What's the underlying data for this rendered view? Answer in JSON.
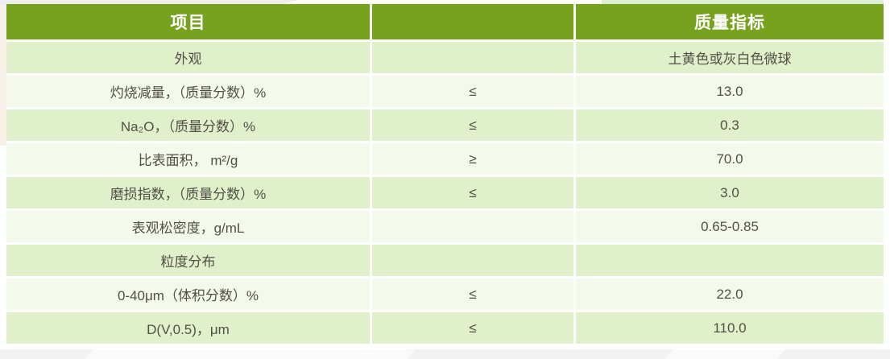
{
  "table": {
    "header": {
      "item": "项目",
      "operator": "",
      "indicator": "质量指标"
    },
    "rows": [
      {
        "item": "外观",
        "operator": "",
        "value": "土黄色或灰白色微球"
      },
      {
        "item": "灼烧减量，（质量分数）%",
        "operator": "≤",
        "value": "13.0"
      },
      {
        "item": "Na₂O，（质量分数）%",
        "operator": "≤",
        "value": "0.3"
      },
      {
        "item": "比表面积， m²/g",
        "operator": "≥",
        "value": "70.0"
      },
      {
        "item": "磨损指数，（质量分数）%",
        "operator": "≤",
        "value": "3.0"
      },
      {
        "item": "表观松密度，g/mL",
        "operator": "",
        "value": "0.65-0.85"
      },
      {
        "item": "粒度分布",
        "operator": "",
        "value": ""
      },
      {
        "item": "0-40μm（体积分数）%",
        "operator": "≤",
        "value": "22.0"
      },
      {
        "item": "D(V,0.5)，μm",
        "operator": "≤",
        "value": "110.0"
      }
    ]
  },
  "colors": {
    "header_bg": "#76a21d",
    "header_text": "#ffffff",
    "row_dark": "#dff0cb",
    "row_light": "#f3f9eb",
    "cell_text": "#534f46",
    "divider": "#ffffff"
  }
}
